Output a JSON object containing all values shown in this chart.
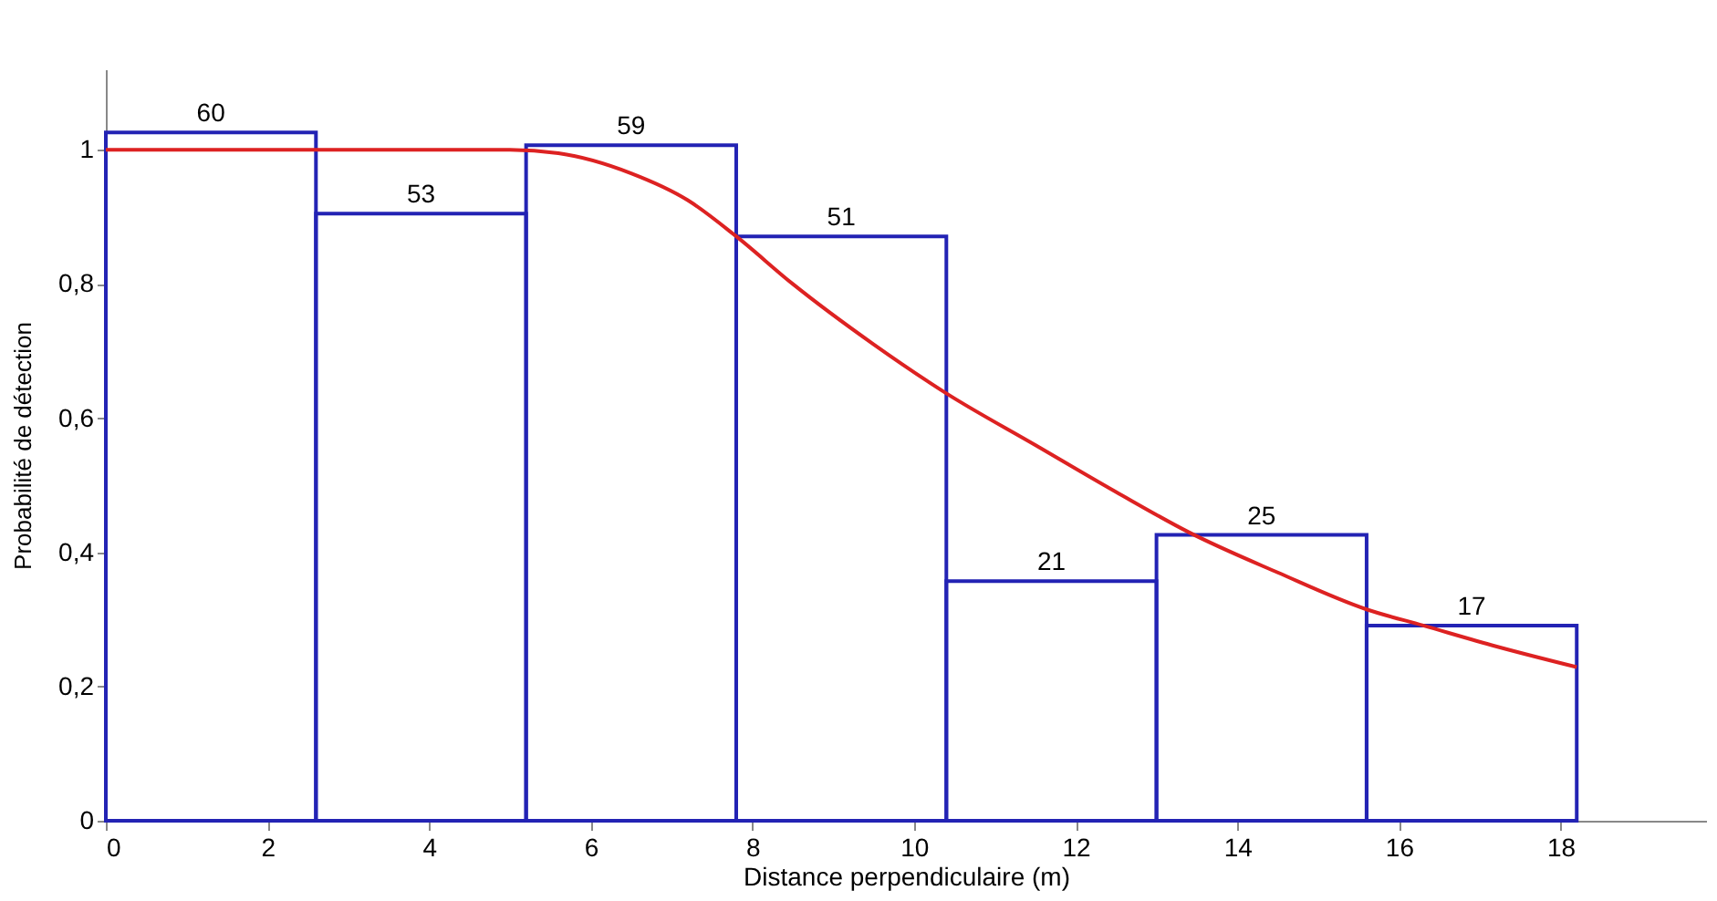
{
  "chart_data": {
    "type": "histogram",
    "xlabel": "Distance perpendiculaire (m)",
    "ylabel": "Probabilité de détection",
    "bins": [
      0,
      2.6,
      5.2,
      7.8,
      10.4,
      13,
      15.6,
      18.2
    ],
    "series": [
      {
        "color": "#2323b4",
        "values": [
          1.026,
          0.905,
          1.007,
          0.871,
          0.357,
          0.426,
          0.291
        ]
      },
      {
        "type": "line",
        "color": "#dd2222",
        "x": [
          0,
          2,
          4,
          5,
          5.6,
          6.5,
          7.2,
          7.8,
          8.5,
          9.5,
          10.4,
          11.5,
          12.5,
          13.4,
          14.5,
          15.6,
          16.3,
          17.2,
          18.2
        ],
        "values": [
          1,
          1,
          1,
          1,
          0.995,
          0.965,
          0.925,
          0.871,
          0.8,
          0.71,
          0.637,
          0.56,
          0.49,
          0.43,
          0.37,
          0.315,
          0.291,
          0.26,
          0.229
        ]
      }
    ],
    "xlim": [
      0,
      19.8
    ],
    "xticks": [
      0,
      2,
      4,
      6,
      8,
      10,
      12,
      14,
      16,
      18
    ],
    "ylim": [
      0,
      1.12
    ],
    "yticks": [
      0,
      {
        "value": 0.2,
        "label": "0,2"
      },
      {
        "value": 0.4,
        "label": "0,4"
      },
      {
        "value": 0.6,
        "label": "0,6"
      },
      {
        "value": 0.8,
        "label": "0,8"
      },
      1
    ],
    "grid": false,
    "annotations": [
      {
        "text": "60",
        "x": 1.3,
        "y": 1.026
      },
      {
        "text": "53",
        "x": 3.9,
        "y": 0.905
      },
      {
        "text": "59",
        "x": 6.5,
        "y": 1.007
      },
      {
        "text": "51",
        "x": 9.1,
        "y": 0.871
      },
      {
        "text": "21",
        "x": 11.7,
        "y": 0.357
      },
      {
        "text": "25",
        "x": 14.3,
        "y": 0.426
      },
      {
        "text": "17",
        "x": 16.9,
        "y": 0.291
      }
    ]
  }
}
